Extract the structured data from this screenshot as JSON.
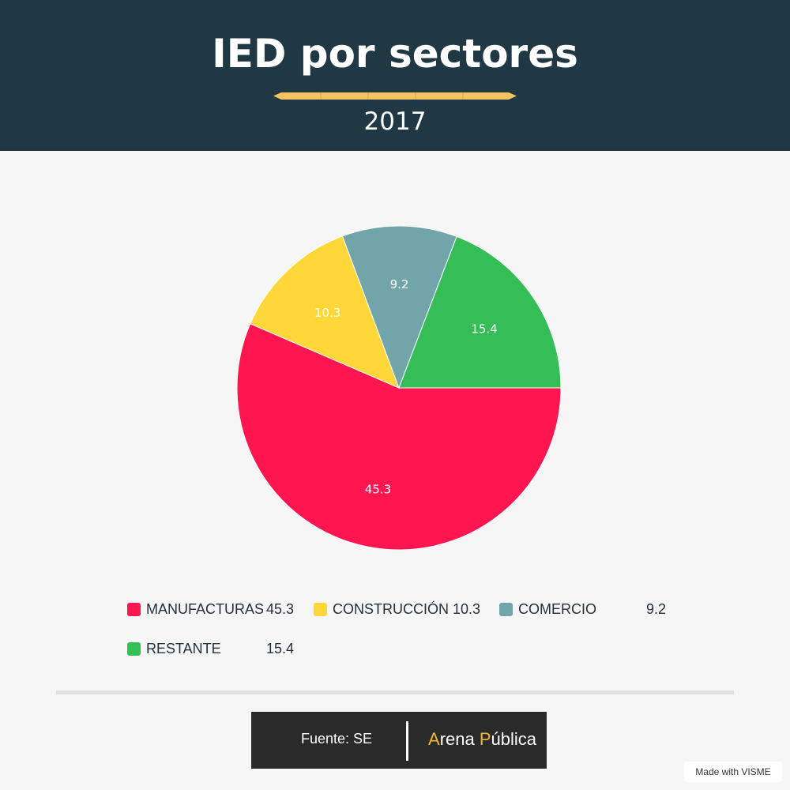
{
  "header": {
    "title": "IED por sectores",
    "subtitle": "2017"
  },
  "colors": {
    "header_bg": "#203744",
    "accent": "#f5c460",
    "manufacturas": "#ff1550",
    "construccion": "#ffd738",
    "comercio": "#72a5aa",
    "restante": "#35bd56"
  },
  "chart_data": {
    "type": "pie",
    "title": "IED por sectores",
    "subtitle": "2017",
    "categories": [
      "MANUFACTURAS",
      "CONSTRUCCIÓN",
      "COMERCIO",
      "RESTANTE"
    ],
    "values": [
      45.3,
      10.3,
      9.2,
      15.4
    ],
    "value_labels": [
      "45.3",
      "10.3",
      "9.2",
      "15.4"
    ],
    "colors": [
      "#ff1550",
      "#ffd738",
      "#72a5aa",
      "#35bd56"
    ],
    "legend_position": "bottom"
  },
  "legend": [
    {
      "label": "MANUFACTURAS",
      "value": "45.3"
    },
    {
      "label": "CONSTRUCCIÓN",
      "value": "10.3"
    },
    {
      "label": "COMERCIO",
      "value": "9.2"
    },
    {
      "label": "RESTANTE",
      "value": "15.4"
    }
  ],
  "footer": {
    "source": "Fuente: SE",
    "brand_a": "A",
    "brand_rena": "rena ",
    "brand_p": "P",
    "brand_ublica": "ública",
    "made_with": "Made with VISME"
  }
}
